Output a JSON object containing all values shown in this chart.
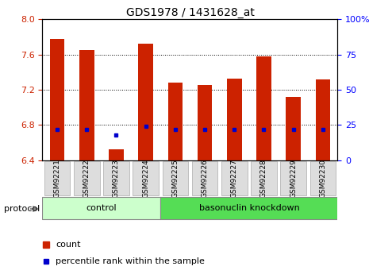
{
  "title": "GDS1978 / 1431628_at",
  "samples": [
    "GSM92221",
    "GSM92222",
    "GSM92223",
    "GSM92224",
    "GSM92225",
    "GSM92226",
    "GSM92227",
    "GSM92228",
    "GSM92229",
    "GSM92230"
  ],
  "count_values": [
    7.78,
    7.65,
    6.52,
    7.72,
    7.28,
    7.25,
    7.33,
    7.58,
    7.12,
    7.32
  ],
  "percentile_values": [
    22,
    22,
    18,
    24,
    22,
    22,
    22,
    22,
    22,
    22
  ],
  "ylim": [
    6.4,
    8.0
  ],
  "yticks": [
    6.4,
    6.8,
    7.2,
    7.6,
    8.0
  ],
  "right_yticks": [
    0,
    25,
    50,
    75,
    100
  ],
  "right_ylabels": [
    "0",
    "25",
    "50",
    "75",
    "100%"
  ],
  "control_group": [
    0,
    1,
    2,
    3
  ],
  "knockdown_group": [
    4,
    5,
    6,
    7,
    8,
    9
  ],
  "control_label": "control",
  "knockdown_label": "basonuclin knockdown",
  "protocol_label": "protocol",
  "legend_count_label": "count",
  "legend_percentile_label": "percentile rank within the sample",
  "bar_color": "#cc2200",
  "percentile_color": "#0000cc",
  "control_bg": "#ccffcc",
  "knockdown_bg": "#55dd55",
  "bar_width": 0.5,
  "bar_bottom": 6.4
}
